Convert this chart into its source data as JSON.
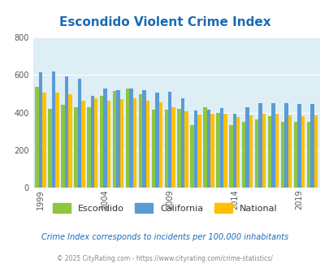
{
  "title": "Escondido Violent Crime Index",
  "title_color": "#1a6bb5",
  "background_color": "#ddeef5",
  "fig_background": "#ffffff",
  "years": [
    1999,
    2000,
    2001,
    2002,
    2003,
    2004,
    2005,
    2006,
    2007,
    2008,
    2009,
    2010,
    2011,
    2012,
    2013,
    2014,
    2015,
    2016,
    2017,
    2018,
    2019,
    2020
  ],
  "escondido": [
    535,
    420,
    440,
    430,
    430,
    490,
    515,
    530,
    500,
    415,
    415,
    420,
    335,
    430,
    400,
    335,
    350,
    365,
    380,
    350,
    350,
    350
  ],
  "california": [
    615,
    620,
    595,
    580,
    490,
    530,
    520,
    530,
    520,
    505,
    510,
    475,
    410,
    415,
    425,
    395,
    430,
    450,
    450,
    450,
    445,
    445
  ],
  "national": [
    505,
    505,
    500,
    465,
    475,
    465,
    470,
    475,
    465,
    455,
    430,
    405,
    390,
    395,
    395,
    375,
    385,
    395,
    395,
    385,
    380,
    385
  ],
  "escondido_color": "#8dc63f",
  "california_color": "#5b9bd5",
  "national_color": "#ffc000",
  "ylim": [
    0,
    800
  ],
  "yticks": [
    0,
    200,
    400,
    600,
    800
  ],
  "xlabel_shown": [
    1999,
    2004,
    2009,
    2014,
    2019
  ],
  "subtitle": "Crime Index corresponds to incidents per 100,000 inhabitants",
  "subtitle_color": "#1a6bb5",
  "footer": "© 2025 CityRating.com - https://www.cityrating.com/crime-statistics/",
  "footer_color": "#888888",
  "legend_labels": [
    "Escondido",
    "California",
    "National"
  ]
}
